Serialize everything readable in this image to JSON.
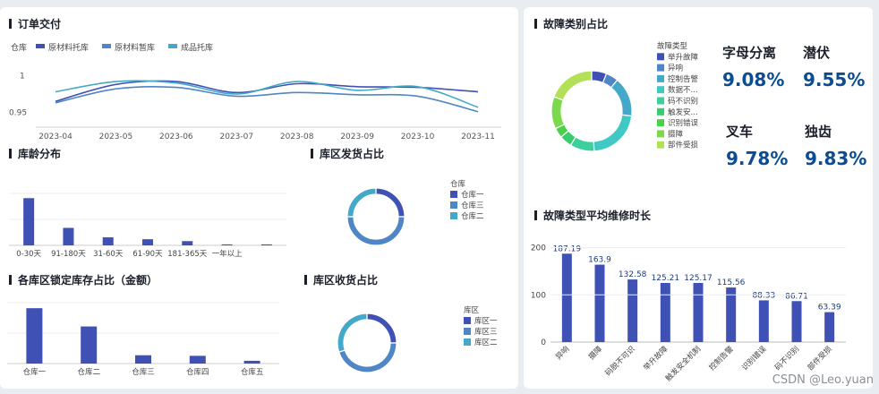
{
  "order": {
    "title": "订单交付",
    "chart_data": {
      "type": "line",
      "categories": [
        "2023-04",
        "2023-05",
        "2023-06",
        "2023-07",
        "2023-08",
        "2023-09",
        "2023-10",
        "2023-11"
      ],
      "legend_title": "仓库",
      "ylabels": [
        "1",
        "0.95"
      ],
      "ylim": [
        0.93,
        1.02
      ],
      "series": [
        {
          "name": "原材料托库",
          "color": "#3f51b5",
          "values": [
            0.965,
            0.988,
            0.992,
            0.977,
            0.989,
            0.985,
            0.984,
            0.978
          ]
        },
        {
          "name": "原材料暂库",
          "color": "#4f86c6",
          "values": [
            0.963,
            0.982,
            0.984,
            0.972,
            0.977,
            0.974,
            0.972,
            0.951
          ]
        },
        {
          "name": "成品托库",
          "color": "#44a8c9",
          "values": [
            0.978,
            0.992,
            0.99,
            0.975,
            0.992,
            0.98,
            0.985,
            0.957
          ]
        }
      ]
    }
  },
  "age": {
    "title": "库龄分布",
    "chart_data": {
      "type": "bar",
      "categories": [
        "0-30天",
        "91-180天",
        "31-60天",
        "61-90天",
        "181-365天",
        "一年以上",
        ""
      ],
      "values": [
        100,
        37,
        17,
        13,
        9,
        2,
        2
      ],
      "ylim": [
        0,
        110
      ]
    }
  },
  "ship": {
    "title": "库区发货占比",
    "legend_title": "仓库",
    "chart_data": {
      "type": "pie",
      "labels": [
        "仓库一",
        "仓库三",
        "仓库二"
      ],
      "values": [
        25,
        50,
        25
      ],
      "colors": [
        "#3f51b5",
        "#4f86c6",
        "#44a8c9"
      ]
    }
  },
  "lock": {
    "title": "各库区锁定库存占比（金额）",
    "chart_data": {
      "type": "bar",
      "categories": [
        "仓库一",
        "仓库二",
        "仓库三",
        "仓库四",
        "仓库五"
      ],
      "values": [
        100,
        67,
        15,
        14,
        5
      ],
      "ylim": [
        0,
        110
      ]
    }
  },
  "recv": {
    "title": "库区收货占比",
    "legend_title": "库区",
    "chart_data": {
      "type": "pie",
      "labels": [
        "库区一",
        "库区三",
        "库区二"
      ],
      "values": [
        25,
        45,
        30
      ],
      "colors": [
        "#3f51b5",
        "#4f86c6",
        "#44a8c9"
      ]
    }
  },
  "fault": {
    "title": "故障类别占比",
    "legend_title": "故障类型",
    "chart_data": {
      "type": "pie",
      "labels": [
        "举升故障",
        "异响",
        "控制告警",
        "数据不...",
        "码不识别",
        "触发安...",
        "识别错误",
        "摄障",
        "部件受损"
      ],
      "values": [
        6,
        5,
        16,
        22,
        9.8,
        5,
        4,
        13,
        19.2
      ],
      "colors": [
        "#3f51b5",
        "#4f86c6",
        "#44a8c9",
        "#3fc8c4",
        "#3dcf9c",
        "#38cc6c",
        "#4ad14a",
        "#7cd94e",
        "#b2e158"
      ]
    },
    "kpis": [
      {
        "label": "字母分离",
        "value": "9.08%"
      },
      {
        "label": "潜伏",
        "value": "9.55%"
      },
      {
        "label": "叉车",
        "value": "9.78%"
      },
      {
        "label": "独齿",
        "value": "9.83%"
      }
    ]
  },
  "repair": {
    "title": "故障类型平均维修时长",
    "chart_data": {
      "type": "bar",
      "categories": [
        "异响",
        "摄障",
        "码脱不可识",
        "举升故障",
        "触发安全机制",
        "控制告警",
        "识别错误",
        "码不识别",
        "部件受损"
      ],
      "values": [
        187.19,
        163.9,
        132.58,
        125.21,
        125.17,
        115.56,
        88.33,
        86.71,
        63.39
      ],
      "yticks": [
        "200",
        "100",
        "0"
      ],
      "ylim": [
        0,
        220
      ]
    }
  },
  "watermark": "CSDN @Leo.yuan"
}
